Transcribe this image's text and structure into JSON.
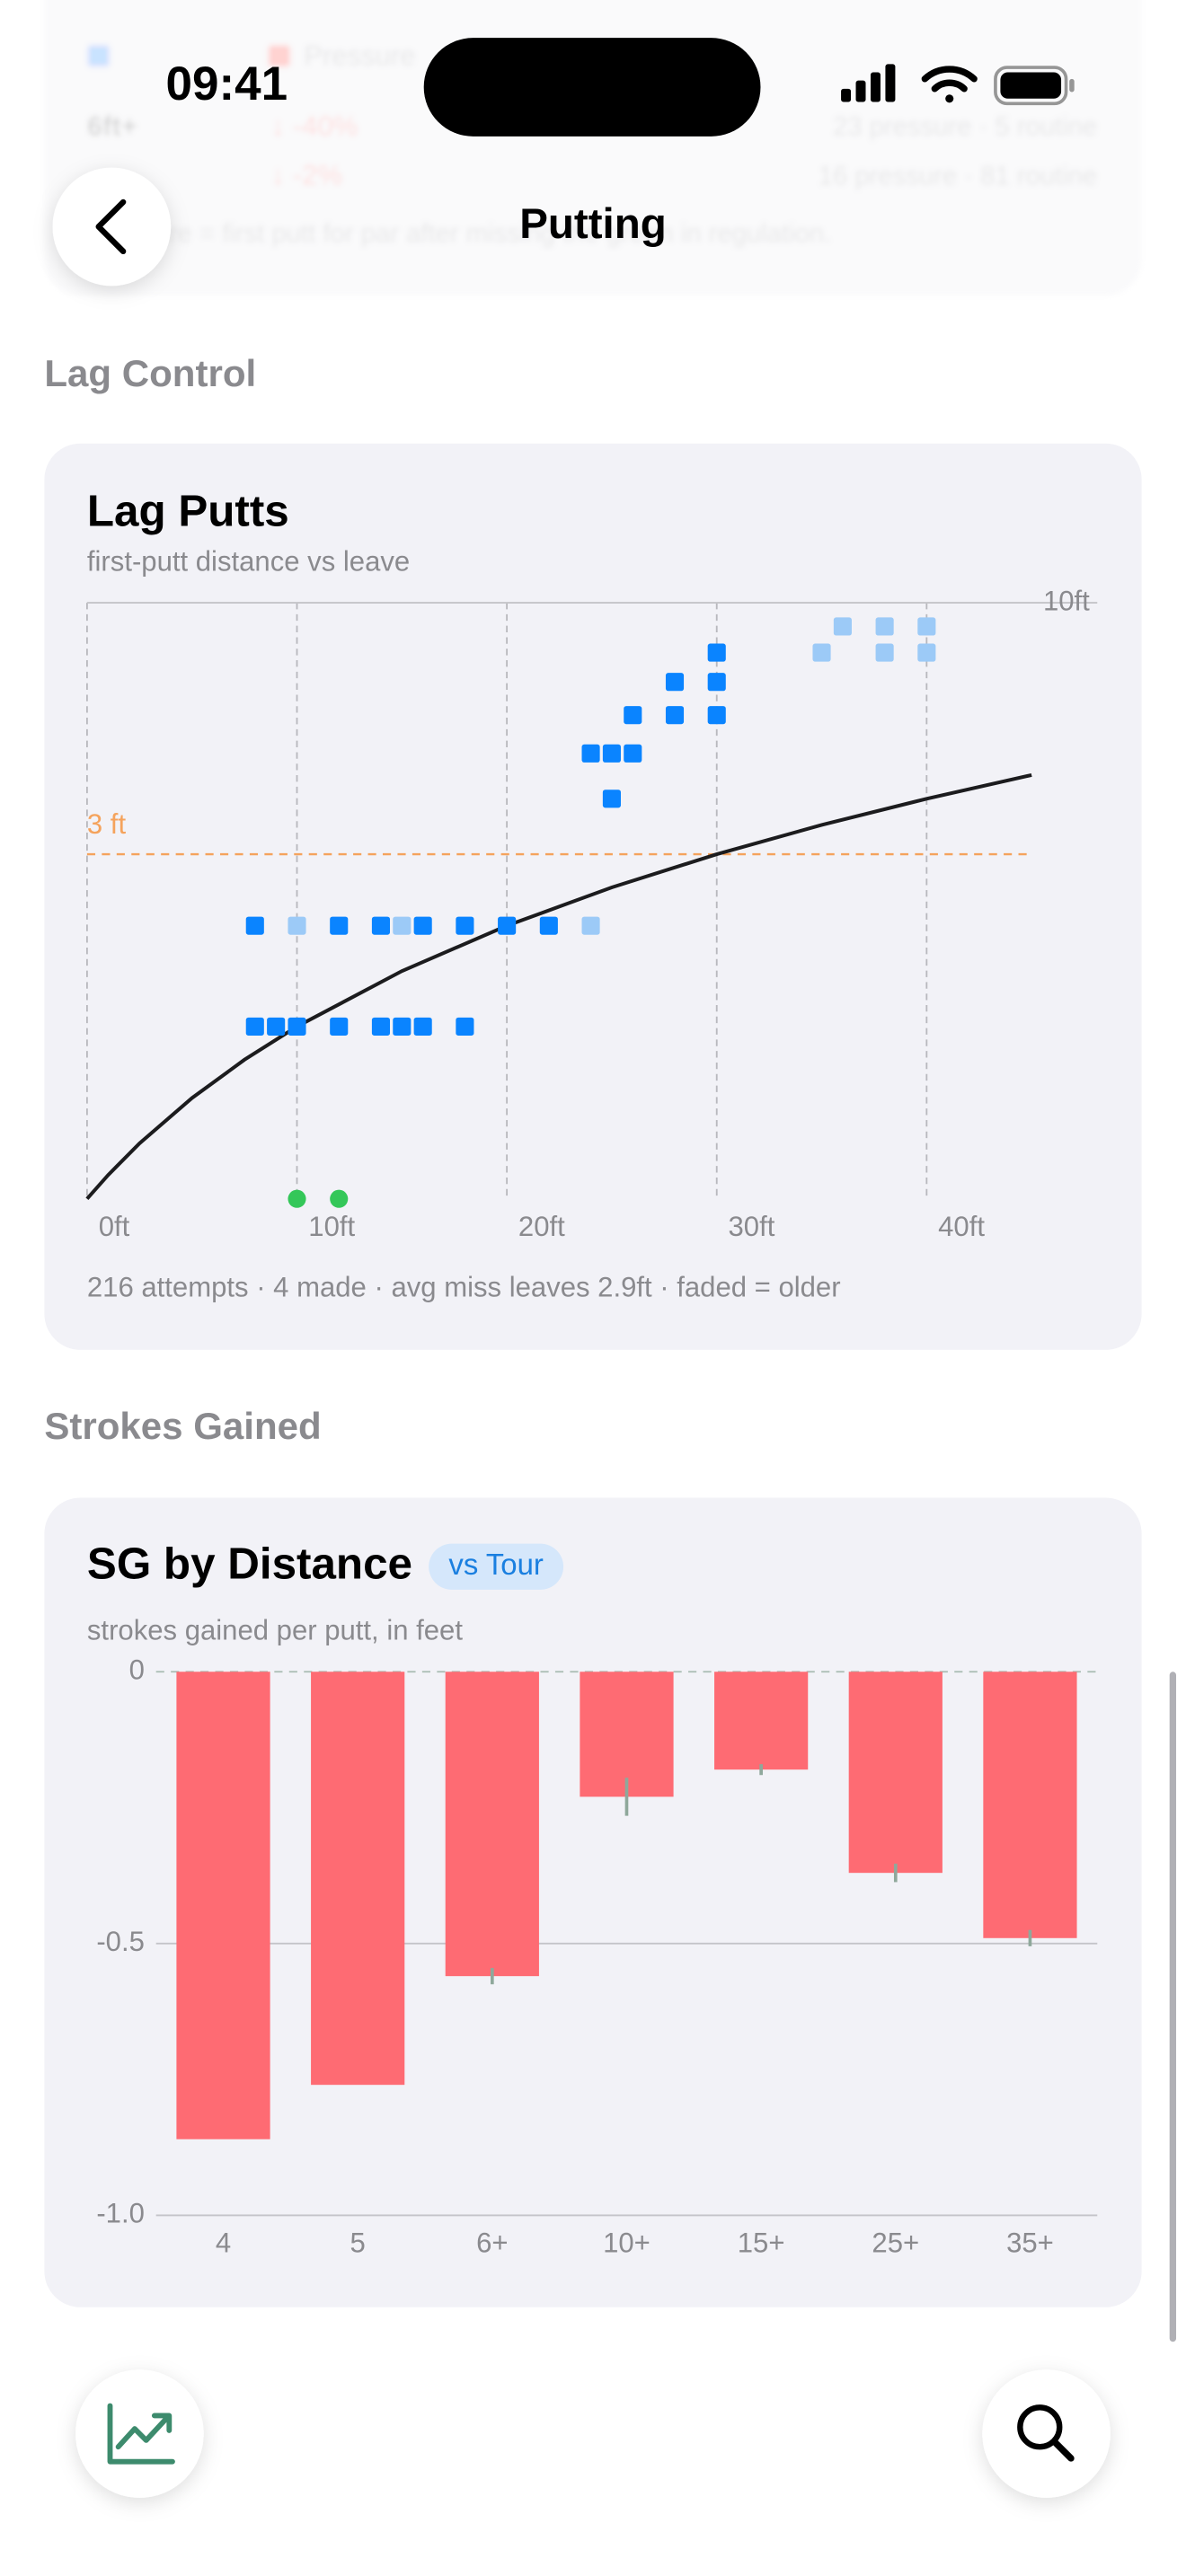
{
  "status_bar": {
    "time": "09:41"
  },
  "nav": {
    "title": "Putting"
  },
  "background": {
    "legend": "Pressure",
    "rows": [
      {
        "label": "6ft+",
        "change": "↓ -40%",
        "detail": "23 pressure · 5 routine"
      },
      {
        "change": "↓ -2%",
        "detail": "16 pressure · 81 routine"
      }
    ],
    "note": "Pressure = first putt for par after missing the green in regulation."
  },
  "sections": [
    "Lag Control",
    "Strokes Gained"
  ],
  "chart_data": [
    {
      "type": "scatter",
      "title": "Lag Putts",
      "subtitle": "first-putt distance vs leave",
      "footnote": "216 attempts · 4 made · avg miss leaves 2.9ft · faded = older",
      "xlim": [
        0,
        45
      ],
      "xticks": [
        {
          "value": 0,
          "label": "0ft"
        },
        {
          "value": 10,
          "label": "10ft"
        },
        {
          "value": 20,
          "label": "20ft"
        },
        {
          "value": 30,
          "label": "30ft"
        },
        {
          "value": 40,
          "label": "40ft"
        }
      ],
      "ylim": [
        0,
        10
      ],
      "yticks": [
        {
          "value": 10,
          "label": "10ft"
        }
      ],
      "y_scale": "log1p",
      "grid": true,
      "reference_line": {
        "value": 3,
        "label": "3 ft",
        "color": "#f5a35c"
      },
      "fit": {
        "color": "#1c1c1e",
        "x": [
          0,
          1,
          2.5,
          5,
          7.5,
          10,
          15,
          20,
          25,
          30,
          35,
          40,
          45
        ],
        "values": [
          0,
          0.1,
          0.25,
          0.5,
          0.75,
          1,
          1.5,
          2,
          2.5,
          3,
          3.5,
          4,
          4.5
        ]
      },
      "series": [
        {
          "color": "#34c759",
          "marker": "circle",
          "x": [
            10,
            12
          ],
          "values": [
            0,
            0
          ]
        },
        {
          "color": "#0a84ff",
          "marker": "square",
          "x": [
            8,
            9,
            10,
            12,
            14,
            15,
            16,
            18,
            8,
            12,
            14,
            16,
            18,
            20,
            22,
            25,
            24,
            25,
            26,
            26,
            28,
            30,
            28,
            30,
            30
          ],
          "values": [
            1,
            1,
            1,
            1,
            1,
            1,
            1,
            1,
            2,
            2,
            2,
            2,
            2,
            2,
            2,
            4,
            5,
            5,
            5,
            6,
            6,
            6,
            7,
            7,
            8
          ]
        },
        {
          "color": "#9ccaf7",
          "marker": "square",
          "x": [
            10,
            15,
            24,
            35,
            38,
            40,
            36,
            38,
            40
          ],
          "values": [
            2,
            2,
            2,
            8,
            8,
            8,
            9,
            9,
            9
          ]
        }
      ]
    },
    {
      "type": "bar",
      "title": "SG by Distance",
      "badge": "vs Tour",
      "subtitle": "strokes gained per putt, in feet",
      "categories": [
        "4",
        "5",
        "6+",
        "10+",
        "15+",
        "25+",
        "35+"
      ],
      "values": [
        -0.86,
        -0.76,
        -0.56,
        -0.23,
        -0.18,
        -0.37,
        -0.49
      ],
      "errors": [
        null,
        null,
        0.015,
        0.035,
        0.01,
        0.017,
        0.015
      ],
      "color": "#fe6b73",
      "error_color": "#8fa89b",
      "ylim": [
        -1,
        0
      ],
      "yticks": [
        0,
        -0.5,
        {
          "value": -1,
          "label": "-1.0"
        }
      ],
      "grid": true
    }
  ]
}
